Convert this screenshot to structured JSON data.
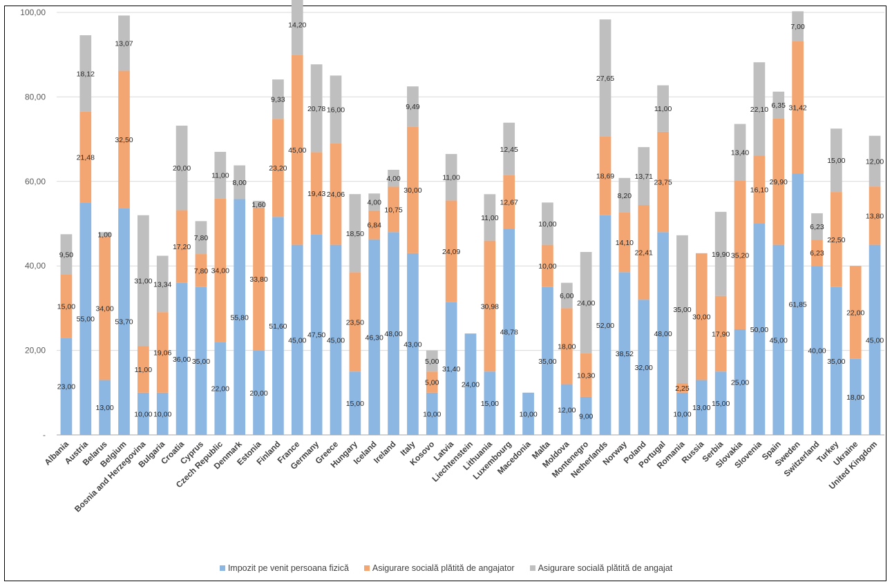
{
  "colors": {
    "series_0": "#8DB7E3",
    "series_1": "#F4A672",
    "series_2": "#BFBFBF",
    "grid": "#D9D9D9",
    "axis": "#A6A6A6"
  },
  "chart_data": {
    "type": "bar",
    "stacked": true,
    "title": "",
    "xlabel": "",
    "ylabel": "",
    "ylim": [
      0,
      100
    ],
    "y_ticks": [
      0,
      20,
      40,
      60,
      80,
      100
    ],
    "y_tick_labels": [
      "-",
      "20,00",
      "40,00",
      "60,00",
      "80,00",
      "100,00"
    ],
    "grid": true,
    "legend_position": "bottom",
    "categories": [
      "Albania",
      "Austria",
      "Belarus",
      "Belgium",
      "Bosnia and Herzegovina",
      "Bulgaria",
      "Croatia",
      "Cyprus",
      "Czech Republic",
      "Denmark",
      "Estonia",
      "Finland",
      "France",
      "Germany",
      "Greece",
      "Hungary",
      "Iceland",
      "Ireland",
      "Italy",
      "Kosovo",
      "Latvia",
      "Liechtenstein",
      "Lithuania",
      "Luxembourg",
      "Macedonia",
      "Malta",
      "Moldova",
      "Montenegro",
      "Netherlands",
      "Norway",
      "Poland",
      "Portugal",
      "Romania",
      "Russia",
      "Serbia",
      "Slovakia",
      "Slovenia",
      "Spain",
      "Sweden",
      "Switzerland",
      "Turkey",
      "Ukraine",
      "United Kingdom"
    ],
    "series": [
      {
        "name": "Impozit pe venit persoana fizică",
        "values": [
          23,
          55,
          13,
          53.7,
          10,
          10,
          36,
          35,
          22,
          55.8,
          20,
          51.6,
          45,
          47.5,
          45,
          15,
          46.3,
          48,
          43,
          10,
          31.4,
          24,
          15,
          48.78,
          10,
          35,
          12,
          9,
          52,
          38.52,
          32,
          48,
          10,
          13,
          15,
          25,
          50,
          45,
          61.85,
          40,
          35,
          18,
          45
        ],
        "labels": [
          "23,00",
          "55,00",
          "13,00",
          "53,70",
          "10,00",
          "10,00",
          "36,00",
          "35,00",
          "22,00",
          "55,80",
          "20,00",
          "51,60",
          "45,00",
          "47,50",
          "45,00",
          "15,00",
          "46,30",
          "48,00",
          "43,00",
          "10,00",
          "31,40",
          "24,00",
          "15,00",
          "48,78",
          "10,00",
          "35,00",
          "12,00",
          "9,00",
          "52,00",
          "38,52",
          "32,00",
          "48,00",
          "10,00",
          "13,00",
          "15,00",
          "25,00",
          "50,00",
          "45,00",
          "61,85",
          "40,00",
          "35,00",
          "18,00",
          "45,00"
        ]
      },
      {
        "name": "Asigurare socială plătită de angajator",
        "values": [
          15,
          21.48,
          34,
          32.5,
          11,
          19.06,
          17.2,
          7.8,
          34,
          0,
          33.8,
          23.2,
          45,
          19.43,
          24.06,
          23.5,
          6.84,
          10.75,
          30,
          5,
          24.09,
          0,
          30.98,
          12.67,
          0,
          10,
          18,
          10.3,
          18.69,
          14.1,
          22.41,
          23.75,
          2.25,
          30,
          17.9,
          35.2,
          16.1,
          29.9,
          31.42,
          6.23,
          22.5,
          22,
          13.8
        ],
        "labels": [
          "15,00",
          "21,48",
          "34,00",
          "32,50",
          "11,00",
          "19,06",
          "17,20",
          "7,80",
          "34,00",
          "",
          "33,80",
          "23,20",
          "45,00",
          "19,43",
          "24,06",
          "23,50",
          "6,84",
          "10,75",
          "30,00",
          "5,00",
          "24,09",
          "",
          "30,98",
          "12,67",
          "",
          "10,00",
          "18,00",
          "10,30",
          "18,69",
          "14,10",
          "22,41",
          "23,75",
          "2,25",
          "30,00",
          "17,90",
          "35,20",
          "16,10",
          "29,90",
          "31,42",
          "6,23",
          "22,50",
          "22,00",
          "13,80"
        ]
      },
      {
        "name": "Asigurare socială plătită de angajat",
        "values": [
          9.5,
          18.12,
          1,
          13.07,
          31,
          13.34,
          20,
          7.8,
          11,
          8,
          1.6,
          9.33,
          14.2,
          20.78,
          16,
          18.5,
          4,
          4,
          9.49,
          5,
          11,
          0,
          11,
          12.45,
          0,
          10,
          6,
          24,
          27.65,
          8.2,
          13.71,
          11,
          35,
          0,
          19.9,
          13.4,
          22.1,
          6.35,
          7,
          6.23,
          15,
          0,
          12
        ],
        "labels": [
          "9,50",
          "18,12",
          "1,00",
          "13,07",
          "31,00",
          "13,34",
          "20,00",
          "7,80",
          "11,00",
          "8,00",
          "1,60",
          "9,33",
          "14,20",
          "20,78",
          "16,00",
          "18,50",
          "4,00",
          "4,00",
          "9,49",
          "5,00",
          "11,00",
          "",
          "11,00",
          "12,45",
          "",
          "10,00",
          "6,00",
          "24,00",
          "27,65",
          "8,20",
          "13,71",
          "11,00",
          "35,00",
          "",
          "19,90",
          "13,40",
          "22,10",
          "6,35",
          "7,00",
          "6,23",
          "15,00",
          "",
          "12,00"
        ]
      }
    ]
  }
}
